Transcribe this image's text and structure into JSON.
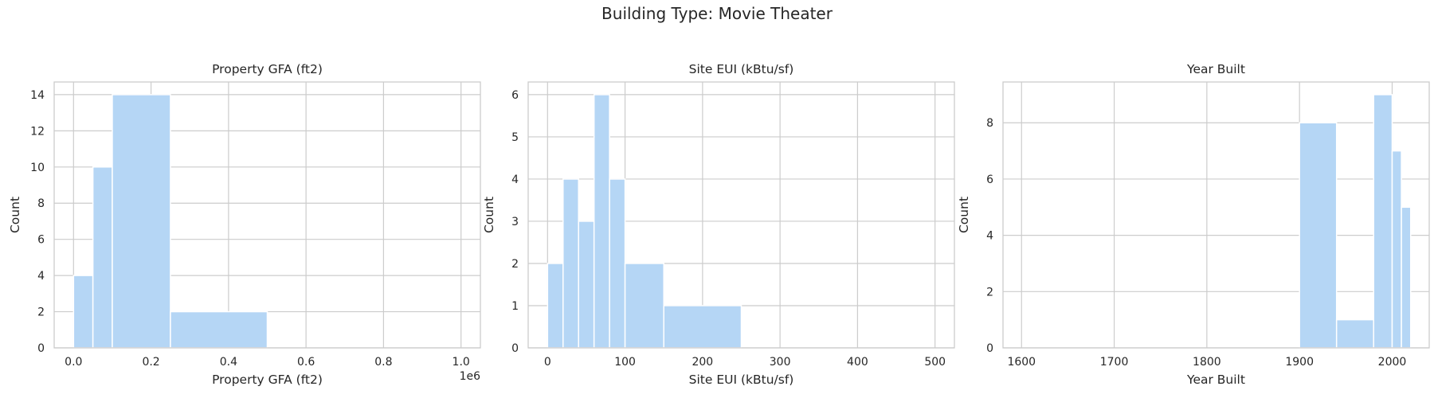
{
  "figure": {
    "title": "Building Type: Movie Theater"
  },
  "colors": {
    "bar": "#b5d6f5",
    "grid": "#cccccc",
    "background": "#ffffff"
  },
  "chart_data": [
    {
      "type": "bar",
      "title": "Property GFA (ft2)",
      "xlabel": "Property GFA (ft2)",
      "ylabel": "Count",
      "xlim": [
        -50000,
        1050000
      ],
      "ylim": [
        0,
        14.7
      ],
      "xticks": [
        0,
        200000,
        400000,
        600000,
        800000,
        1000000
      ],
      "xtick_labels": [
        "0.0",
        "0.2",
        "0.4",
        "0.6",
        "0.8",
        "1.0"
      ],
      "x_offset_label": "1e6",
      "yticks": [
        0,
        2,
        4,
        6,
        8,
        10,
        12,
        14
      ],
      "ytick_labels": [
        "0",
        "2",
        "4",
        "6",
        "8",
        "10",
        "12",
        "14"
      ],
      "grid": true,
      "bins": [
        {
          "x0": 0,
          "x1": 50000,
          "count": 4
        },
        {
          "x0": 50000,
          "x1": 100000,
          "count": 10
        },
        {
          "x0": 100000,
          "x1": 250000,
          "count": 14
        },
        {
          "x0": 250000,
          "x1": 500000,
          "count": 2
        }
      ]
    },
    {
      "type": "bar",
      "title": "Site EUI (kBtu/sf)",
      "xlabel": "Site EUI (kBtu/sf)",
      "ylabel": "Count",
      "xlim": [
        -25,
        525
      ],
      "ylim": [
        0,
        6.3
      ],
      "xticks": [
        0,
        100,
        200,
        300,
        400,
        500
      ],
      "xtick_labels": [
        "0",
        "100",
        "200",
        "300",
        "400",
        "500"
      ],
      "yticks": [
        0,
        1,
        2,
        3,
        4,
        5,
        6
      ],
      "ytick_labels": [
        "0",
        "1",
        "2",
        "3",
        "4",
        "5",
        "6"
      ],
      "grid": true,
      "bins": [
        {
          "x0": 0,
          "x1": 20,
          "count": 2
        },
        {
          "x0": 20,
          "x1": 40,
          "count": 4
        },
        {
          "x0": 40,
          "x1": 60,
          "count": 3
        },
        {
          "x0": 60,
          "x1": 80,
          "count": 6
        },
        {
          "x0": 80,
          "x1": 100,
          "count": 4
        },
        {
          "x0": 100,
          "x1": 150,
          "count": 2
        },
        {
          "x0": 150,
          "x1": 250,
          "count": 1
        }
      ]
    },
    {
      "type": "bar",
      "title": "Year Built",
      "xlabel": "Year Built",
      "ylabel": "Count",
      "xlim": [
        1580,
        2040
      ],
      "ylim": [
        0,
        9.45
      ],
      "xticks": [
        1600,
        1700,
        1800,
        1900,
        2000
      ],
      "xtick_labels": [
        "1600",
        "1700",
        "1800",
        "1900",
        "2000"
      ],
      "yticks": [
        0,
        2,
        4,
        6,
        8
      ],
      "ytick_labels": [
        "0",
        "2",
        "4",
        "6",
        "8"
      ],
      "grid": true,
      "bins": [
        {
          "x0": 1900,
          "x1": 1940,
          "count": 8
        },
        {
          "x0": 1940,
          "x1": 1980,
          "count": 1
        },
        {
          "x0": 1980,
          "x1": 2000,
          "count": 9
        },
        {
          "x0": 2000,
          "x1": 2010,
          "count": 7
        },
        {
          "x0": 2010,
          "x1": 2020,
          "count": 5
        }
      ]
    }
  ]
}
